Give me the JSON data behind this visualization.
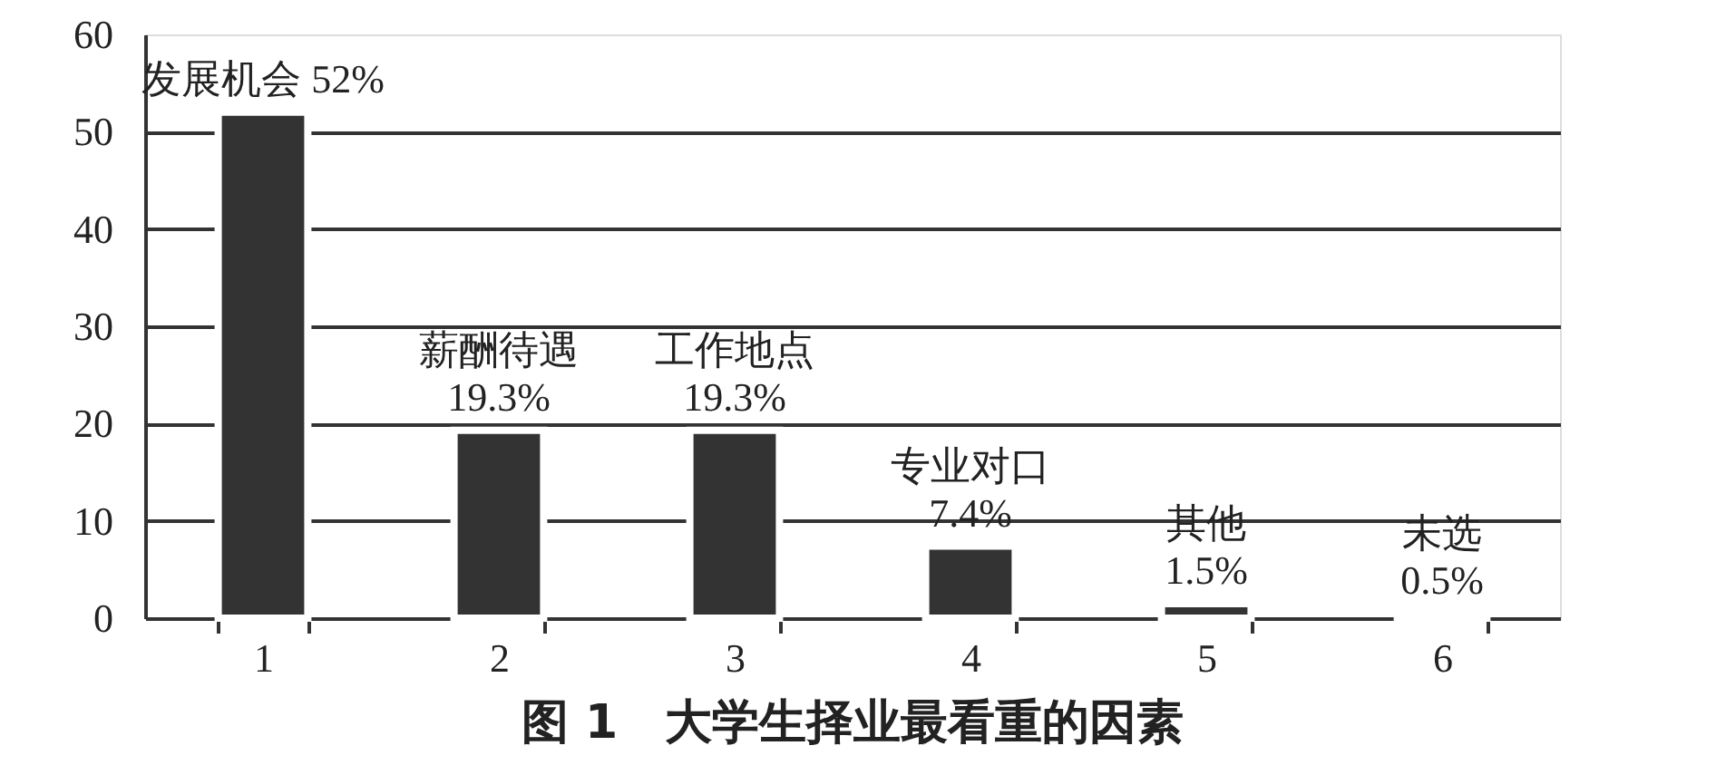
{
  "chart_data": {
    "type": "bar",
    "title": "图 1　大学生择业最看重的因素",
    "categories": [
      "1",
      "2",
      "3",
      "4",
      "5",
      "6"
    ],
    "values": [
      52,
      19.3,
      19.3,
      7.4,
      1.5,
      0.5
    ],
    "value_labels": [
      "发展机会 52%",
      "薪酬待遇\n19.3%",
      "工作地点\n19.3%",
      "专业对口\n7.4%",
      "其他\n1.5%",
      "未选\n0.5%"
    ],
    "color": "#333333",
    "ylim": [
      0,
      60
    ],
    "yticks": [
      0,
      10,
      20,
      30,
      40,
      50,
      60
    ],
    "grid": "y"
  }
}
